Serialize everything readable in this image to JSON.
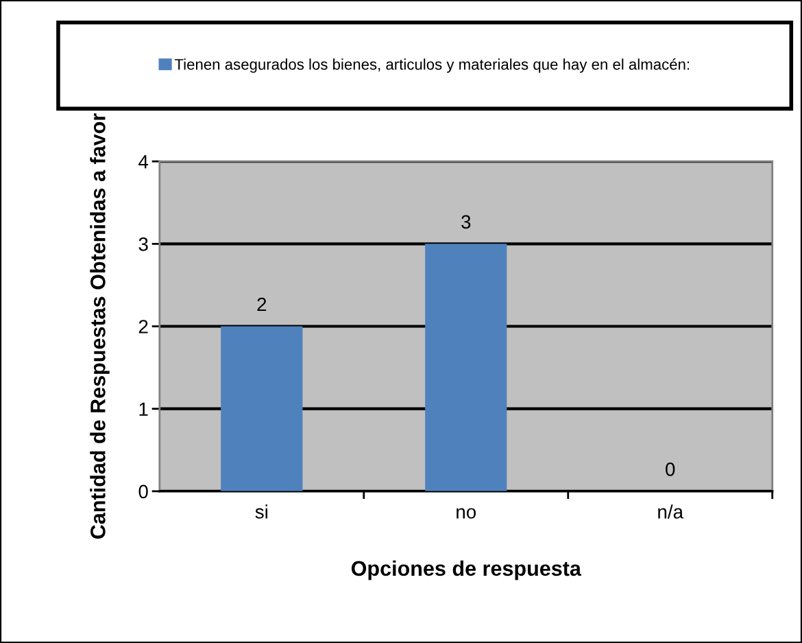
{
  "chart_data": {
    "type": "bar",
    "categories": [
      "si",
      "no",
      "n/a"
    ],
    "series": [
      {
        "name": "Tienen asegurados los bienes, articulos y materiales que hay en el almacén:",
        "color": "#4f81bd",
        "values": [
          2,
          3,
          0
        ]
      }
    ],
    "xlabel": "Opciones de respuesta",
    "ylabel": "Cantidad de Respuestas Obtenidas a favor",
    "ylim": [
      0,
      4
    ],
    "yticks": [
      0,
      1,
      2,
      3,
      4
    ],
    "grid": "y",
    "legend": "top",
    "data_labels": true
  }
}
